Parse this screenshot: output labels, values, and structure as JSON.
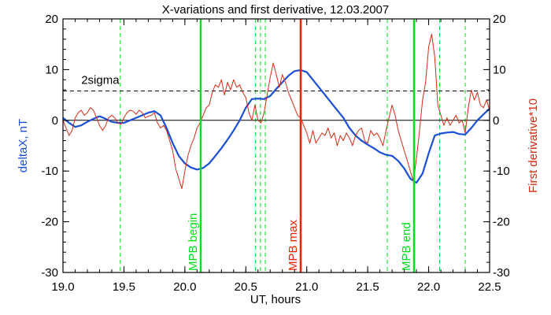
{
  "chart_data": {
    "type": "line",
    "title": "X-variations and first derivative, 12.03.2007",
    "xlabel": "UT, hours",
    "ylabel_left": "deltaX, nT",
    "ylabel_right": "First derivative*10",
    "xlim": [
      19.0,
      22.5
    ],
    "ylim": [
      -30,
      20
    ],
    "x_ticks": [
      "19.0",
      "19.5",
      "20.0",
      "20.5",
      "21.0",
      "21.5",
      "22.0",
      "22.5"
    ],
    "y_ticks_left": [
      "20",
      "10",
      "0",
      "-10",
      "-20",
      "-30"
    ],
    "y_ticks_right": [
      "20",
      "10",
      "0",
      "-10",
      "-20",
      "-30"
    ],
    "colors": {
      "deltaX": "#1a4fd6",
      "derivative": "#d42c14",
      "green": "#00e01c",
      "max_line": "#ee2200",
      "axes": "#000000"
    },
    "threshold": {
      "label": "2sigma",
      "value": 5.8
    },
    "zero_line": 0,
    "dashed_lines_x": [
      19.47,
      20.58,
      20.62,
      20.66,
      21.66,
      22.09,
      22.3
    ],
    "markers": [
      {
        "label": "MPB begin",
        "x": 20.13,
        "color": "green"
      },
      {
        "label": "MPB max",
        "x": 20.95,
        "color": "red"
      },
      {
        "label": "MPB end",
        "x": 21.88,
        "color": "green"
      }
    ],
    "series": [
      {
        "name": "deltaX",
        "color": "#1a4fd6",
        "x": [
          19.0,
          19.05,
          19.1,
          19.15,
          19.2,
          19.25,
          19.3,
          19.35,
          19.4,
          19.45,
          19.5,
          19.55,
          19.6,
          19.65,
          19.7,
          19.75,
          19.8,
          19.85,
          19.9,
          19.95,
          20.0,
          20.05,
          20.1,
          20.15,
          20.2,
          20.25,
          20.3,
          20.35,
          20.4,
          20.45,
          20.5,
          20.55,
          20.6,
          20.65,
          20.7,
          20.75,
          20.8,
          20.85,
          20.9,
          20.95,
          21.0,
          21.05,
          21.1,
          21.15,
          21.2,
          21.25,
          21.3,
          21.35,
          21.4,
          21.45,
          21.5,
          21.55,
          21.6,
          21.65,
          21.7,
          21.75,
          21.8,
          21.85,
          21.9,
          21.95,
          22.0,
          22.05,
          22.1,
          22.15,
          22.2,
          22.25,
          22.3,
          22.35,
          22.4,
          22.45,
          22.5
        ],
        "values": [
          0.5,
          -0.5,
          -1.3,
          -1.0,
          -0.3,
          0.3,
          0.8,
          0.3,
          -0.3,
          -0.5,
          -0.5,
          0.0,
          0.5,
          1.0,
          1.5,
          1.8,
          1.0,
          -1.5,
          -4.5,
          -7.0,
          -8.5,
          -9.3,
          -9.7,
          -9.4,
          -8.5,
          -7.0,
          -5.5,
          -3.8,
          -2.0,
          0.0,
          2.5,
          4.2,
          4.3,
          4.2,
          4.8,
          6.2,
          7.5,
          8.8,
          9.7,
          9.9,
          9.5,
          8.0,
          6.5,
          5.0,
          3.5,
          2.0,
          0.5,
          -1.5,
          -3.0,
          -4.0,
          -4.8,
          -5.5,
          -6.3,
          -6.8,
          -7.0,
          -8.0,
          -9.5,
          -11.5,
          -12.3,
          -10.5,
          -6.5,
          -3.0,
          -2.6,
          -2.4,
          -2.3,
          -2.7,
          -2.8,
          -1.5,
          0.0,
          1.2,
          2.3
        ]
      },
      {
        "name": "derivative",
        "color": "#d42c14",
        "x": [
          19.0,
          19.025,
          19.05,
          19.075,
          19.1,
          19.125,
          19.15,
          19.175,
          19.2,
          19.225,
          19.25,
          19.275,
          19.3,
          19.325,
          19.35,
          19.375,
          19.4,
          19.425,
          19.45,
          19.475,
          19.5,
          19.525,
          19.55,
          19.575,
          19.6,
          19.625,
          19.65,
          19.675,
          19.7,
          19.725,
          19.75,
          19.775,
          19.8,
          19.825,
          19.85,
          19.875,
          19.9,
          19.925,
          19.95,
          19.975,
          20.0,
          20.025,
          20.05,
          20.075,
          20.1,
          20.125,
          20.15,
          20.175,
          20.2,
          20.225,
          20.25,
          20.275,
          20.3,
          20.325,
          20.35,
          20.375,
          20.4,
          20.425,
          20.45,
          20.475,
          20.5,
          20.525,
          20.55,
          20.575,
          20.6,
          20.625,
          20.65,
          20.675,
          20.7,
          20.725,
          20.75,
          20.775,
          20.8,
          20.825,
          20.85,
          20.875,
          20.9,
          20.925,
          20.95,
          20.975,
          21.0,
          21.025,
          21.05,
          21.075,
          21.1,
          21.125,
          21.15,
          21.175,
          21.2,
          21.225,
          21.25,
          21.275,
          21.3,
          21.325,
          21.35,
          21.375,
          21.4,
          21.425,
          21.45,
          21.475,
          21.5,
          21.525,
          21.55,
          21.575,
          21.6,
          21.625,
          21.65,
          21.675,
          21.7,
          21.725,
          21.75,
          21.775,
          21.8,
          21.825,
          21.85,
          21.875,
          21.9,
          21.925,
          21.95,
          21.975,
          22.0,
          22.025,
          22.05,
          22.075,
          22.1,
          22.125,
          22.15,
          22.175,
          22.2,
          22.225,
          22.25,
          22.275,
          22.3,
          22.325,
          22.35,
          22.375,
          22.4,
          22.425,
          22.45,
          22.475,
          22.5
        ],
        "values": [
          0.0,
          -1.5,
          -3.0,
          -2.0,
          0.5,
          1.5,
          2.0,
          1.0,
          1.5,
          2.5,
          2.0,
          0.5,
          -1.0,
          -2.0,
          -1.0,
          0.5,
          1.0,
          0.5,
          -0.5,
          -0.8,
          0.5,
          1.5,
          2.0,
          1.8,
          1.2,
          2.0,
          1.5,
          0.5,
          0.8,
          1.0,
          1.5,
          -0.5,
          -1.5,
          -1.0,
          -2.0,
          -4.0,
          -6.0,
          -9.5,
          -11.5,
          -13.5,
          -10.0,
          -7.0,
          -5.0,
          -3.5,
          -1.5,
          -0.5,
          1.0,
          2.5,
          3.0,
          5.5,
          7.0,
          6.5,
          8.0,
          5.0,
          7.5,
          6.0,
          8.0,
          6.5,
          7.0,
          5.5,
          4.5,
          1.5,
          0.0,
          3.0,
          0.0,
          -0.5,
          1.5,
          5.0,
          8.5,
          11.3,
          9.0,
          6.5,
          9.0,
          7.5,
          5.5,
          4.0,
          2.5,
          1.0,
          0.5,
          -1.0,
          -2.5,
          -4.5,
          -2.0,
          -4.5,
          -3.5,
          -2.5,
          -3.0,
          -1.5,
          -3.5,
          -2.5,
          -5.0,
          -3.0,
          -4.0,
          -2.5,
          -3.5,
          -5.0,
          -3.0,
          -2.0,
          -1.5,
          -4.0,
          -4.5,
          -2.0,
          -3.0,
          -2.5,
          -3.5,
          -5.0,
          -2.0,
          0.5,
          3.0,
          1.0,
          -2.0,
          -4.0,
          -6.0,
          -8.0,
          -10.0,
          -12.0,
          -7.5,
          -2.0,
          4.0,
          7.5,
          14.5,
          17.0,
          12.5,
          3.0,
          1.0,
          -1.0,
          0.5,
          -1.0,
          0.0,
          1.0,
          -0.5,
          0.0,
          -2.5,
          2.5,
          6.0,
          4.0,
          5.5,
          3.0,
          2.5,
          4.0,
          2.0
        ]
      }
    ]
  }
}
